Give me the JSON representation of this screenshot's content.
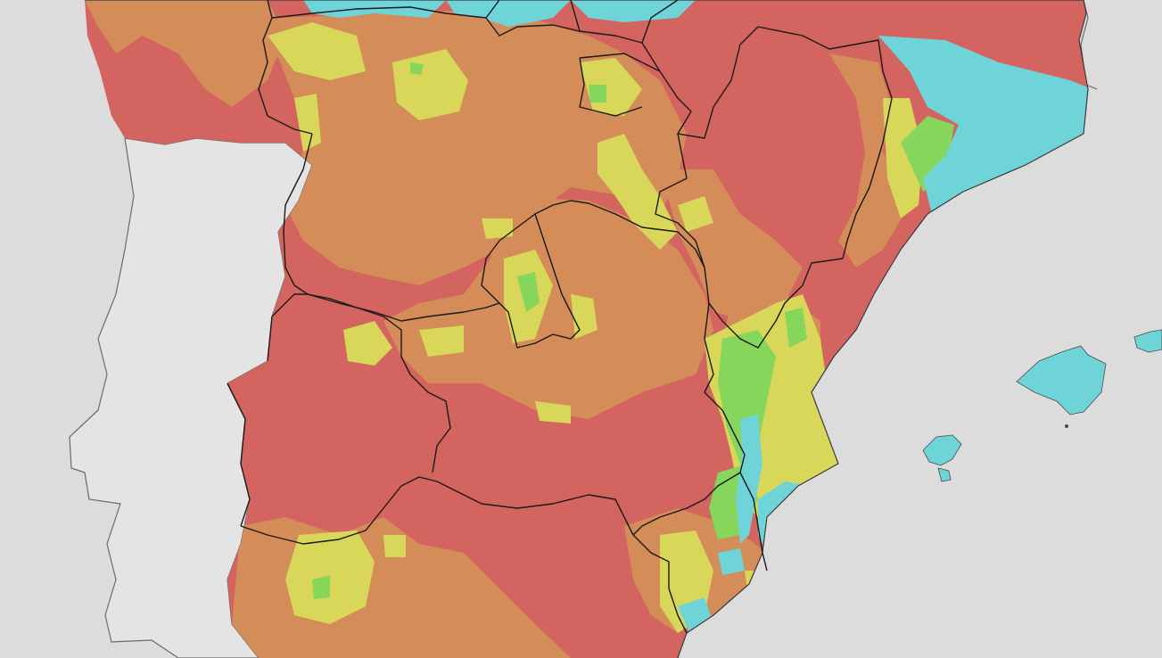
{
  "map": {
    "background_color": "#dcdcdc",
    "sea_color": "#dcdcdc",
    "neighbour_land_color": "#e4e4e4",
    "border_color": "#1a1a1a",
    "coast_color": "#6b6b6b",
    "legend_classes": [
      {
        "name": "cyan",
        "color": "#6fd4d8"
      },
      {
        "name": "green",
        "color": "#86d65c"
      },
      {
        "name": "yellow",
        "color": "#d9d75a"
      },
      {
        "name": "orange",
        "color": "#d48c58"
      },
      {
        "name": "red",
        "color": "#d46460"
      }
    ]
  }
}
